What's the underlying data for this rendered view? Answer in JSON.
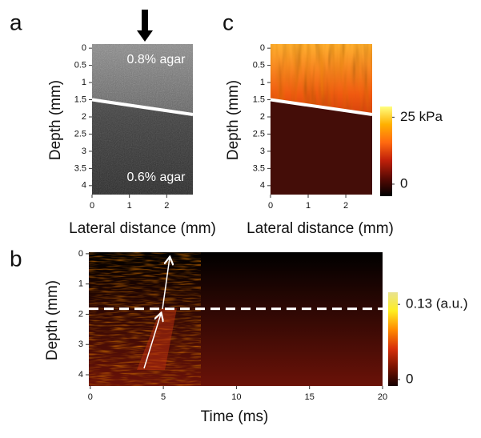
{
  "chart_data": [
    {
      "type": "image",
      "panel": "a",
      "xlabel": "Lateral distance (mm)",
      "ylabel": "Depth (mm)",
      "xlim": [
        0,
        2.7
      ],
      "ylim": [
        4.26,
        -0.12
      ],
      "xticks": [
        0,
        1,
        2
      ],
      "yticks": [
        0,
        0.5,
        1,
        1.5,
        2,
        2.5,
        3,
        3.5,
        4
      ],
      "annotations": [
        "0.8% agar",
        "0.6% agar"
      ],
      "lines": [
        {
          "x": [
            0,
            2.7
          ],
          "y": [
            1.5,
            1.93
          ],
          "color": "#ffffff",
          "dash": false
        }
      ],
      "colors": [
        "#8a8a8a",
        "#5a5a5a",
        "#3a3a3a"
      ]
    },
    {
      "type": "image",
      "panel": "c",
      "xlabel": "Lateral distance (mm)",
      "ylabel": "Depth (mm)",
      "xlim": [
        0,
        2.7
      ],
      "ylim": [
        4.26,
        -0.12
      ],
      "xticks": [
        0,
        1,
        2
      ],
      "yticks": [
        0,
        0.5,
        1,
        1.5,
        2,
        2.5,
        3,
        3.5,
        4
      ],
      "lines": [
        {
          "x": [
            0,
            2.7
          ],
          "y": [
            1.5,
            1.93
          ],
          "color": "#ffffff",
          "dash": false
        }
      ],
      "colors": [
        "#ffb030",
        "#f05a10",
        "#b01e08",
        "#3a0c08"
      ],
      "colorbar": {
        "lim": [
          -4.5,
          29
        ],
        "ticks": [
          {
            "value": 25,
            "label": "25 kPa"
          },
          0
        ],
        "colors": [
          "#000000",
          "#5a0a04",
          "#c0200a",
          "#ff6a10",
          "#ffb000",
          "#ffff80"
        ]
      }
    },
    {
      "type": "image",
      "panel": "b",
      "xlabel": "Time (ms)",
      "ylabel": "Depth (mm)",
      "xlim": [
        -0.1,
        20
      ],
      "ylim": [
        4.37,
        -0.05
      ],
      "xticks": [
        0,
        5,
        10,
        15,
        20
      ],
      "yticks": [
        0,
        1,
        2,
        3,
        4
      ],
      "lines": [
        {
          "x": [
            -0.1,
            20
          ],
          "y": [
            1.82,
            1.82
          ],
          "color": "#ffffff",
          "dash": true
        }
      ],
      "colors": [
        "#000000",
        "#6a1208"
      ],
      "colorbar": {
        "lim": [
          -0.011,
          0.151
        ],
        "ticks": [
          {
            "value": 0.13,
            "label": "0.13 (a.u.)"
          },
          0
        ],
        "colors": [
          "#150000",
          "#7a1200",
          "#d8300a",
          "#ff8a00",
          "#ffee20",
          "#e8e290"
        ]
      }
    }
  ]
}
